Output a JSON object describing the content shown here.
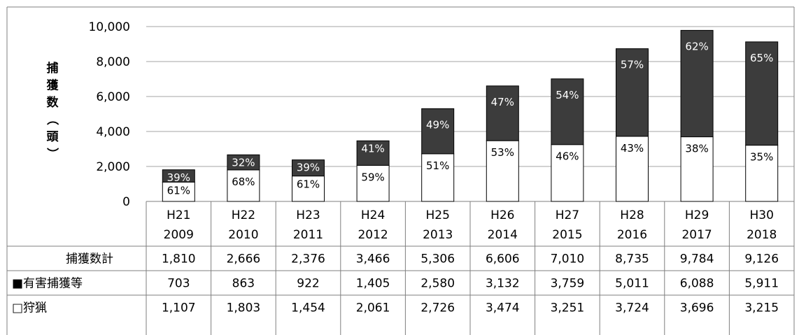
{
  "chart_data": {
    "type": "bar",
    "stacked": true,
    "ylabel": "捕獲数（頭）",
    "ylim": [
      0,
      10000
    ],
    "yticks": [
      "10,000",
      "8,000",
      "6,000",
      "4,000",
      "2,000",
      "0"
    ],
    "ytick_values": [
      10000,
      8000,
      6000,
      4000,
      2000,
      0
    ],
    "grid": true,
    "categories": [
      {
        "era": "H21",
        "year": "2009"
      },
      {
        "era": "H22",
        "year": "2010"
      },
      {
        "era": "H23",
        "year": "2011"
      },
      {
        "era": "H24",
        "year": "2012"
      },
      {
        "era": "H25",
        "year": "2013"
      },
      {
        "era": "H26",
        "year": "2014"
      },
      {
        "era": "H27",
        "year": "2015"
      },
      {
        "era": "H28",
        "year": "2016"
      },
      {
        "era": "H29",
        "year": "2017"
      },
      {
        "era": "H30",
        "year": "2018"
      }
    ],
    "series": [
      {
        "name": "狩猟",
        "color": "#ffffff",
        "values": [
          1107,
          1803,
          1454,
          2061,
          2726,
          3474,
          3251,
          3724,
          3696,
          3215
        ],
        "labels": [
          "61%",
          "68%",
          "61%",
          "59%",
          "51%",
          "53%",
          "46%",
          "43%",
          "38%",
          "35%"
        ]
      },
      {
        "name": "有害捕獲等",
        "color": "#3c3c3c",
        "values": [
          703,
          863,
          922,
          1405,
          2580,
          3132,
          3759,
          5011,
          6088,
          5911
        ],
        "labels": [
          "39%",
          "32%",
          "39%",
          "41%",
          "49%",
          "47%",
          "54%",
          "57%",
          "62%",
          "65%"
        ]
      }
    ],
    "table": {
      "rows": [
        {
          "label": "捕獲数計",
          "values": [
            "1,810",
            "2,666",
            "2,376",
            "3,466",
            "5,306",
            "6,606",
            "7,010",
            "8,735",
            "9,784",
            "9,126"
          ]
        },
        {
          "label": "■有害捕獲等",
          "values": [
            "703",
            "863",
            "922",
            "1,405",
            "2,580",
            "3,132",
            "3,759",
            "5,011",
            "6,088",
            "5,911"
          ]
        },
        {
          "label": "□狩猟",
          "values": [
            "1,107",
            "1,803",
            "1,454",
            "2,061",
            "2,726",
            "3,474",
            "3,251",
            "3,724",
            "3,696",
            "3,215"
          ]
        }
      ]
    }
  }
}
